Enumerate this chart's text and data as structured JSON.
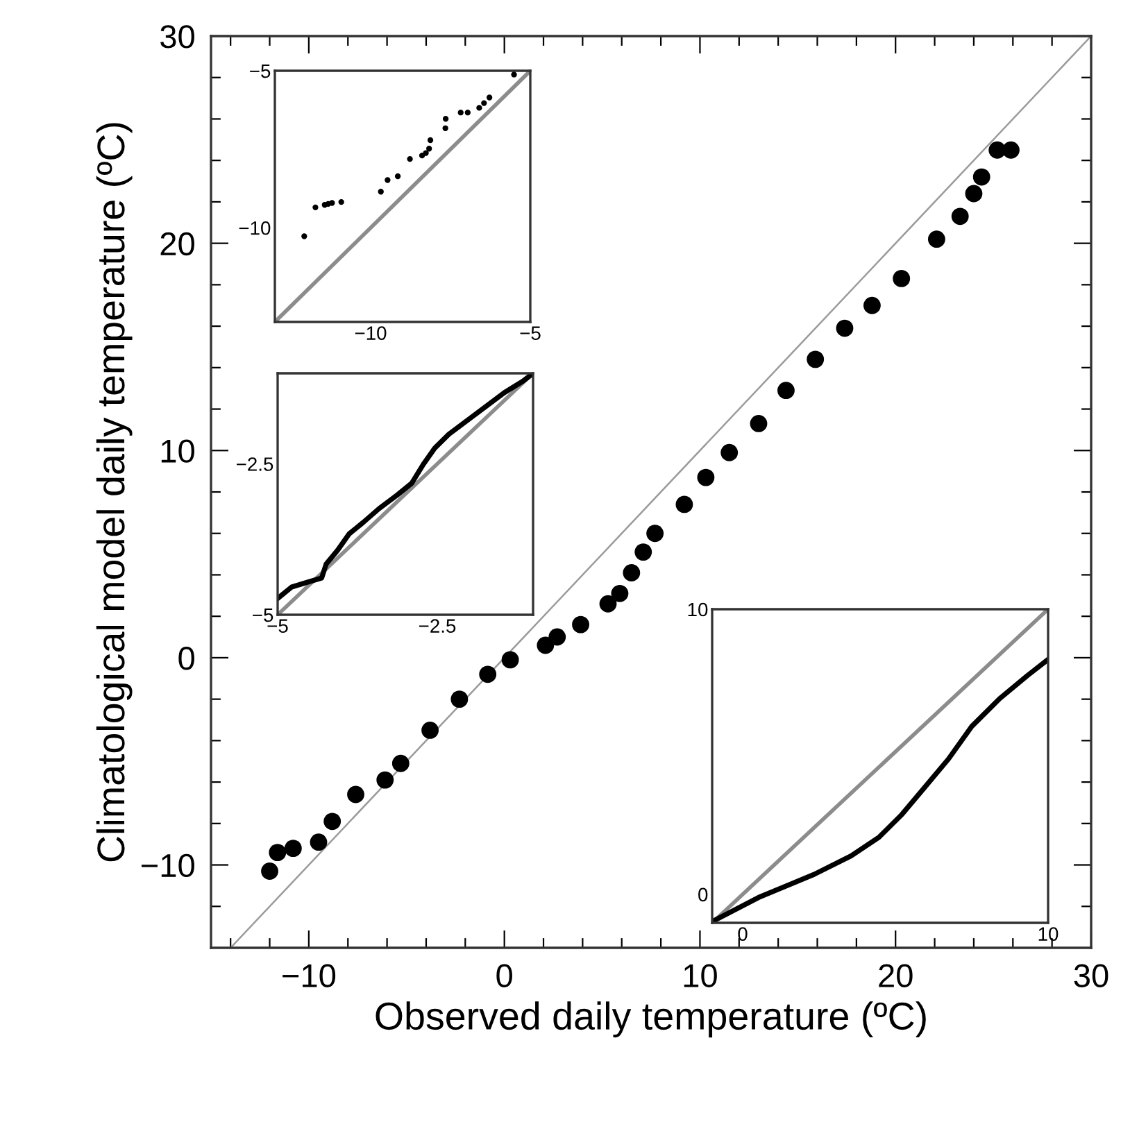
{
  "chart_data": [
    {
      "type": "scatter",
      "xlabel": "Observed daily temperature (ºC)",
      "ylabel": "Climatological model daily temperature (ºC)",
      "xlim": [
        -15,
        30
      ],
      "ylim": [
        -14,
        30
      ],
      "grid": false,
      "xticks": [
        {
          "value": -14,
          "label": null
        },
        {
          "value": -12,
          "label": null
        },
        {
          "value": -10,
          "label": "−10"
        },
        {
          "value": -8,
          "label": null
        },
        {
          "value": -6,
          "label": null
        },
        {
          "value": -4,
          "label": null
        },
        {
          "value": -2,
          "label": null
        },
        0,
        {
          "value": 2,
          "label": null
        },
        {
          "value": 4,
          "label": null
        },
        {
          "value": 6,
          "label": null
        },
        {
          "value": 8,
          "label": null
        },
        10,
        {
          "value": 12,
          "label": null
        },
        {
          "value": 14,
          "label": null
        },
        {
          "value": 16,
          "label": null
        },
        {
          "value": 18,
          "label": null
        },
        20,
        {
          "value": 22,
          "label": null
        },
        {
          "value": 24,
          "label": null
        },
        {
          "value": 26,
          "label": null
        },
        {
          "value": 28,
          "label": null
        },
        30
      ],
      "yticks": [
        {
          "value": -12,
          "label": null
        },
        {
          "value": -10,
          "label": "−10"
        },
        {
          "value": -8,
          "label": null
        },
        {
          "value": -6,
          "label": null
        },
        {
          "value": -4,
          "label": null
        },
        {
          "value": -2,
          "label": null
        },
        0,
        {
          "value": 2,
          "label": null
        },
        {
          "value": 4,
          "label": null
        },
        {
          "value": 6,
          "label": null
        },
        {
          "value": 8,
          "label": null
        },
        10,
        {
          "value": 12,
          "label": null
        },
        {
          "value": 14,
          "label": null
        },
        {
          "value": 16,
          "label": null
        },
        {
          "value": 18,
          "label": null
        },
        20,
        {
          "value": 22,
          "label": null
        },
        {
          "value": 24,
          "label": null
        },
        {
          "value": 26,
          "label": null
        },
        {
          "value": 28,
          "label": null
        },
        30
      ],
      "series": [
        {
          "marker": "circle",
          "color": "#000000",
          "x": [
            -12.0,
            -11.6,
            -10.8,
            -9.5,
            -8.8,
            -7.6,
            -6.1,
            -5.3,
            -3.8,
            -2.3,
            -0.85,
            0.3,
            2.1,
            2.7,
            3.9,
            5.3,
            5.9,
            6.5,
            7.1,
            7.7,
            9.2,
            10.3,
            11.5,
            13.0,
            14.4,
            15.9,
            17.4,
            18.8,
            20.3,
            22.1,
            23.3,
            24.0,
            24.4,
            25.2,
            25.9
          ],
          "values": [
            -10.3,
            -9.4,
            -9.2,
            -8.9,
            -7.9,
            -6.6,
            -5.9,
            -5.1,
            -3.5,
            -2.0,
            -0.8,
            -0.1,
            0.6,
            1.0,
            1.6,
            2.6,
            3.1,
            4.1,
            5.1,
            6.0,
            7.4,
            8.7,
            9.9,
            11.3,
            12.9,
            14.4,
            15.9,
            17.0,
            18.3,
            20.2,
            21.3,
            22.4,
            23.2,
            24.5,
            24.5
          ]
        },
        {
          "type": "line",
          "color": "#9a9a9a",
          "x": [
            -14,
            30
          ],
          "values": [
            -14,
            30
          ]
        }
      ]
    },
    {
      "type": "scatter",
      "xlim": [
        -13,
        -5
      ],
      "ylim": [
        -13,
        -5
      ],
      "grid": false,
      "xticks": [
        {
          "value": -10,
          "label": "−10"
        },
        {
          "value": -5,
          "label": "−5"
        }
      ],
      "yticks": [
        {
          "value": -10,
          "label": "−10"
        },
        {
          "value": -5,
          "label": "−5"
        }
      ],
      "series": [
        {
          "type": "line",
          "color": "#8c8c8c",
          "x": [
            -13,
            -5
          ],
          "values": [
            -13,
            -5
          ]
        },
        {
          "marker": "circle",
          "color": "#000000",
          "x": [
            -12.08,
            -11.73,
            -11.44,
            -11.33,
            -11.21,
            -10.92,
            -9.68,
            -9.47,
            -9.15,
            -8.77,
            -8.39,
            -8.27,
            -8.17,
            -8.13,
            -7.66,
            -7.65,
            -7.18,
            -6.96,
            -6.6,
            -6.45,
            -6.28,
            -5.51
          ],
          "values": [
            -10.27,
            -9.35,
            -9.27,
            -9.24,
            -9.21,
            -9.18,
            -8.85,
            -8.48,
            -8.36,
            -7.81,
            -7.7,
            -7.62,
            -7.48,
            -7.21,
            -6.83,
            -6.53,
            -6.33,
            -6.33,
            -6.18,
            -6.03,
            -5.85,
            -5.12
          ]
        }
      ]
    },
    {
      "type": "line",
      "xlim": [
        -5,
        -1
      ],
      "ylim": [
        -5,
        -1
      ],
      "grid": false,
      "xticks": [
        {
          "value": -5,
          "label": "−5"
        },
        {
          "value": -2.5,
          "label": "−2.5"
        }
      ],
      "yticks": [
        {
          "value": -5,
          "label": "−5"
        },
        {
          "value": -2.5,
          "label": "−2.5"
        }
      ],
      "series": [
        {
          "color": "#8c8c8c",
          "x": [
            -5,
            -1
          ],
          "values": [
            -5,
            -1
          ]
        },
        {
          "color": "#000000",
          "x": [
            -5,
            -4.78,
            -4.53,
            -4.31,
            -4.24,
            -4.06,
            -3.88,
            -3.66,
            -3.41,
            -3.12,
            -2.9,
            -2.72,
            -2.54,
            -2.32,
            -2.03,
            -1.74,
            -1.45,
            -1.16,
            -1.0
          ],
          "values": [
            -4.73,
            -4.54,
            -4.46,
            -4.39,
            -4.16,
            -3.93,
            -3.66,
            -3.47,
            -3.24,
            -3.01,
            -2.82,
            -2.51,
            -2.24,
            -2.01,
            -1.78,
            -1.55,
            -1.32,
            -1.13,
            -1.0
          ]
        }
      ]
    },
    {
      "type": "line",
      "xlim": [
        -1,
        10
      ],
      "ylim": [
        -1,
        10
      ],
      "grid": false,
      "xticks": [
        0,
        10
      ],
      "yticks": [
        0,
        10
      ],
      "series": [
        {
          "color": "#8c8c8c",
          "x": [
            -1,
            10
          ],
          "values": [
            -1,
            10
          ]
        },
        {
          "color": "#000000",
          "x": [
            -0.9,
            0.52,
            2.34,
            3.55,
            4.46,
            5.22,
            5.98,
            6.74,
            7.5,
            8.41,
            9.32,
            10.0
          ],
          "values": [
            -0.9,
            -0.11,
            0.7,
            1.35,
            2.0,
            2.81,
            3.78,
            4.75,
            5.89,
            6.86,
            7.67,
            8.24
          ]
        }
      ]
    }
  ]
}
